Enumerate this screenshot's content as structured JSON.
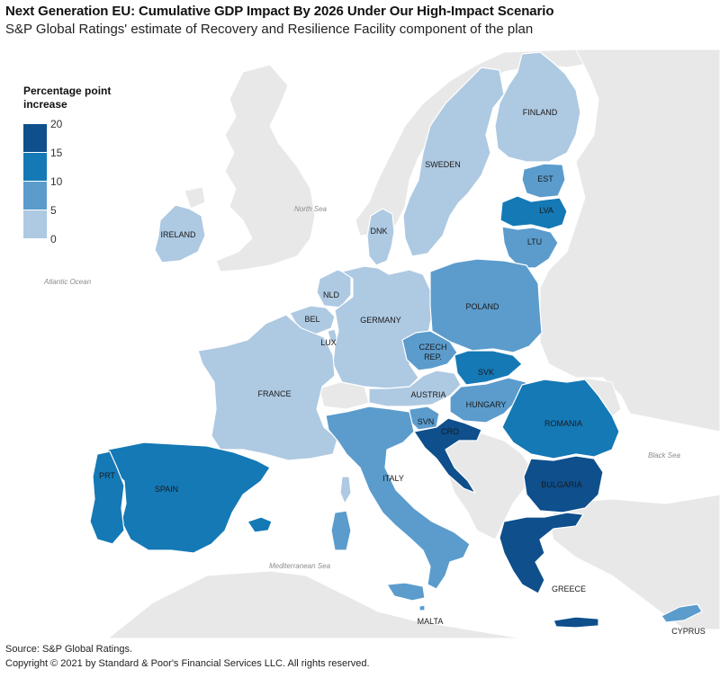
{
  "title": "Next Generation EU: Cumulative GDP Impact By 2026 Under Our High-Impact Scenario",
  "subtitle": "S&P Global Ratings' estimate of Recovery and Resilience Facility component of the plan",
  "legend": {
    "title": "Percentage point increase",
    "ticks": [
      "20",
      "15",
      "10",
      "5",
      "0"
    ],
    "colors": [
      "#0e4f8c",
      "#1479b5",
      "#5b9ccd",
      "#aec9e2"
    ]
  },
  "colors": {
    "background": "#ffffff",
    "non_eu_land": "#e8e8e8",
    "non_eu_land_lighter": "#efefef",
    "border": "#ffffff",
    "band_0_5": "#aec9e2",
    "band_5_10": "#5b9ccd",
    "band_10_15": "#1479b5",
    "band_15_20": "#0e4f8c"
  },
  "countries": [
    {
      "id": "finland",
      "label": "FINLAND",
      "band": "0-5"
    },
    {
      "id": "sweden",
      "label": "SWEDEN",
      "band": "0-5"
    },
    {
      "id": "est",
      "label": "EST",
      "band": "5-10"
    },
    {
      "id": "lva",
      "label": "LVA",
      "band": "10-15"
    },
    {
      "id": "ltu",
      "label": "LTU",
      "band": "5-10"
    },
    {
      "id": "dnk",
      "label": "DNK",
      "band": "0-5"
    },
    {
      "id": "ireland",
      "label": "IRELAND",
      "band": "0-5"
    },
    {
      "id": "nld",
      "label": "NLD",
      "band": "0-5"
    },
    {
      "id": "bel",
      "label": "BEL",
      "band": "0-5"
    },
    {
      "id": "lux",
      "label": "LUX",
      "band": "0-5"
    },
    {
      "id": "germany",
      "label": "GERMANY",
      "band": "0-5"
    },
    {
      "id": "poland",
      "label": "POLAND",
      "band": "5-10"
    },
    {
      "id": "czech",
      "label": "CZECH REP.",
      "band": "5-10"
    },
    {
      "id": "svk",
      "label": "SVK",
      "band": "10-15"
    },
    {
      "id": "austria",
      "label": "AUSTRIA",
      "band": "0-5"
    },
    {
      "id": "hungary",
      "label": "HUNGARY",
      "band": "5-10"
    },
    {
      "id": "romania",
      "label": "ROMANIA",
      "band": "10-15"
    },
    {
      "id": "france",
      "label": "FRANCE",
      "band": "0-5"
    },
    {
      "id": "svn",
      "label": "SVN",
      "band": "5-10"
    },
    {
      "id": "cro",
      "label": "CRO",
      "band": "15-20"
    },
    {
      "id": "bulgaria",
      "label": "BULGARIA",
      "band": "15-20"
    },
    {
      "id": "italy",
      "label": "ITALY",
      "band": "5-10"
    },
    {
      "id": "spain",
      "label": "SPAIN",
      "band": "10-15"
    },
    {
      "id": "prt",
      "label": "PRT",
      "band": "10-15"
    },
    {
      "id": "greece",
      "label": "GREECE",
      "band": "15-20"
    },
    {
      "id": "malta",
      "label": "MALTA",
      "band": "5-10"
    },
    {
      "id": "cyprus",
      "label": "CYPRUS",
      "band": "5-10"
    }
  ],
  "seas": {
    "north_sea": "North Sea",
    "atlantic_ocean": "Atlantic Ocean",
    "black_sea": "Black Sea",
    "mediterranean_sea": "Mediterranean Sea"
  },
  "footer": {
    "source": "Source: S&P Global Ratings.",
    "copyright": "Copyright © 2021 by Standard & Poor's Financial Services LLC. All rights reserved."
  }
}
